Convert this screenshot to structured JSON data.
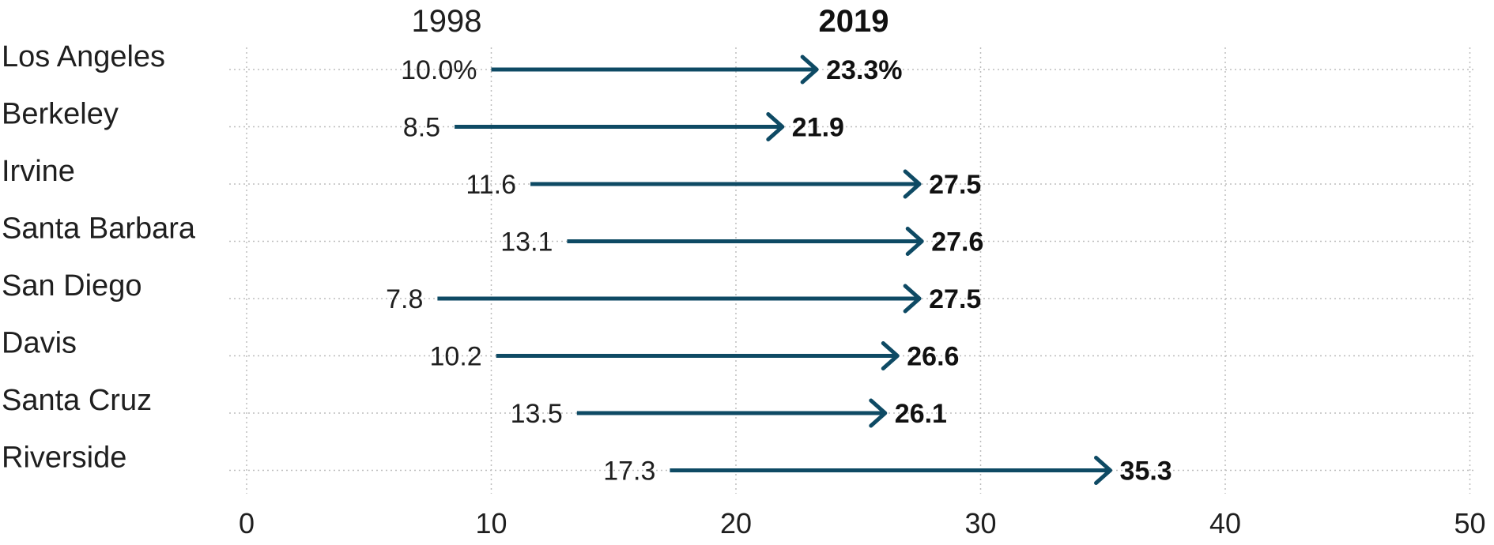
{
  "chart_data": {
    "type": "arrow",
    "title": "",
    "xlabel": "",
    "ylabel": "",
    "xlim": [
      0,
      50
    ],
    "x_ticks": [
      0,
      10,
      20,
      30,
      40,
      50
    ],
    "grid": true,
    "series_labels": {
      "start": "1998",
      "end": "2019"
    },
    "categories": [
      "Los Angeles",
      "Berkeley",
      "Irvine",
      "Santa Barbara",
      "San Diego",
      "Davis",
      "Santa Cruz",
      "Riverside"
    ],
    "start_values": [
      10.0,
      8.5,
      11.6,
      13.1,
      7.8,
      10.2,
      13.5,
      17.3
    ],
    "end_values": [
      23.3,
      21.9,
      27.5,
      27.6,
      27.5,
      26.6,
      26.1,
      35.3
    ],
    "start_labels": [
      "10.0%",
      "8.5",
      "11.6",
      "13.1",
      "7.8",
      "10.2",
      "13.5",
      "17.3"
    ],
    "end_labels": [
      "23.3%",
      "21.9",
      "27.5",
      "27.6",
      "27.5",
      "26.6",
      "26.1",
      "35.3"
    ],
    "colors": {
      "arrow": "#0e4a64"
    }
  }
}
